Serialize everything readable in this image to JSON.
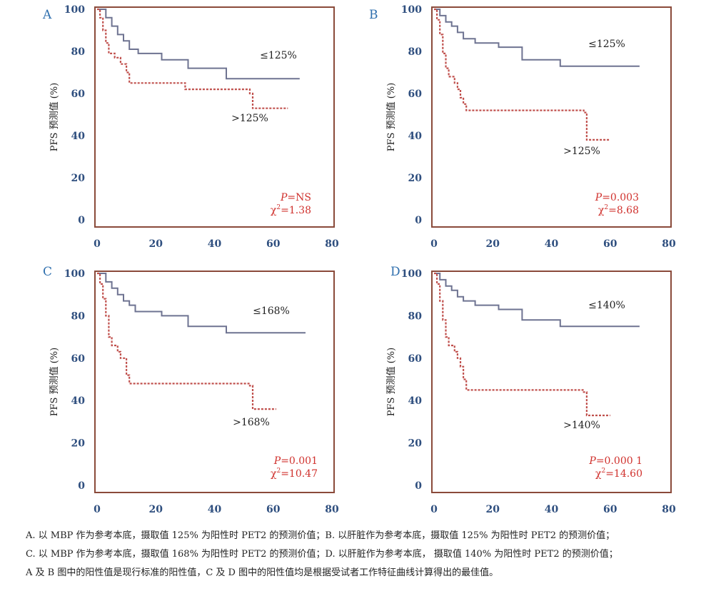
{
  "chart_data": [
    {
      "type": "line",
      "panel_label": "A",
      "ylabel": "PFS 预测值 (%)",
      "xlim": [
        0,
        80
      ],
      "ylim": [
        0,
        100
      ],
      "x_ticks": [
        "0",
        "20",
        "40",
        "60",
        "80"
      ],
      "y_ticks": [
        "0",
        "20",
        "40",
        "60",
        "80",
        "100"
      ],
      "grid": false,
      "series": [
        {
          "name": "≤125%",
          "color": "#6e7391",
          "dash": false,
          "x": [
            0,
            3,
            5,
            7,
            9,
            11,
            14,
            22,
            31,
            44,
            69
          ],
          "y": [
            100,
            96,
            92,
            88,
            85,
            81,
            79,
            76,
            72,
            67,
            67
          ]
        },
        {
          "name": ">125%",
          "color": "#c0504d",
          "dash": true,
          "x": [
            0,
            1,
            2,
            3,
            4,
            6,
            8,
            10,
            11,
            30,
            52,
            53,
            65
          ],
          "y": [
            100,
            96,
            90,
            84,
            79,
            77,
            74,
            70,
            65,
            62,
            60,
            53,
            53
          ]
        }
      ],
      "stat_p_label": "P",
      "stat_p_value": "=NS",
      "stat_chi_label": "χ",
      "stat_chi_exp": "2",
      "stat_chi_value": "=1.38"
    },
    {
      "type": "line",
      "panel_label": "B",
      "ylabel": "PFS 预测值 (%)",
      "xlim": [
        0,
        80
      ],
      "ylim": [
        0,
        100
      ],
      "x_ticks": [
        "0",
        "20",
        "40",
        "60",
        "80"
      ],
      "y_ticks": [
        "0",
        "20",
        "40",
        "60",
        "80",
        "100"
      ],
      "grid": false,
      "series": [
        {
          "name": "≤125%",
          "color": "#6e7391",
          "dash": false,
          "x": [
            0,
            2,
            4,
            6,
            8,
            10,
            14,
            22,
            30,
            43,
            70
          ],
          "y": [
            100,
            97,
            94,
            92,
            89,
            86,
            84,
            82,
            76,
            73,
            73
          ]
        },
        {
          "name": ">125%",
          "color": "#c0504d",
          "dash": true,
          "x": [
            0,
            1,
            2,
            3,
            4,
            5,
            7,
            8,
            9,
            10,
            11,
            51,
            52,
            60
          ],
          "y": [
            100,
            95,
            88,
            79,
            72,
            68,
            65,
            62,
            58,
            55,
            52,
            51,
            38,
            38
          ]
        }
      ],
      "stat_p_label": "P",
      "stat_p_value": "=0.003",
      "stat_chi_label": "χ",
      "stat_chi_exp": "2",
      "stat_chi_value": "=8.68"
    },
    {
      "type": "line",
      "panel_label": "C",
      "ylabel": "PFS 预测值 (%)",
      "xlim": [
        0,
        80
      ],
      "ylim": [
        0,
        100
      ],
      "x_ticks": [
        "0",
        "20",
        "40",
        "60",
        "80"
      ],
      "y_ticks": [
        "0",
        "20",
        "40",
        "60",
        "80",
        "100"
      ],
      "grid": false,
      "series": [
        {
          "name": "≤168%",
          "color": "#6e7391",
          "dash": false,
          "x": [
            0,
            3,
            5,
            7,
            9,
            11,
            13,
            22,
            31,
            44,
            71
          ],
          "y": [
            100,
            96,
            93,
            90,
            87,
            85,
            82,
            80,
            75,
            72,
            72
          ]
        },
        {
          "name": ">168%",
          "color": "#c0504d",
          "dash": true,
          "x": [
            0,
            1,
            2,
            3,
            4,
            5,
            7,
            8,
            10,
            11,
            52,
            53,
            61
          ],
          "y": [
            100,
            95,
            88,
            80,
            70,
            66,
            63,
            60,
            52,
            48,
            47,
            36,
            36
          ]
        }
      ],
      "stat_p_label": "P",
      "stat_p_value": "=0.001",
      "stat_chi_label": "χ",
      "stat_chi_exp": "2",
      "stat_chi_value": "=10.47"
    },
    {
      "type": "line",
      "panel_label": "D",
      "ylabel": "PFS 预测值 (%)",
      "xlim": [
        0,
        80
      ],
      "ylim": [
        0,
        100
      ],
      "x_ticks": [
        "0",
        "20",
        "40",
        "60",
        "80"
      ],
      "y_ticks": [
        "0",
        "20",
        "40",
        "60",
        "80",
        "100"
      ],
      "grid": false,
      "series": [
        {
          "name": "≤140%",
          "color": "#6e7391",
          "dash": false,
          "x": [
            0,
            2,
            4,
            6,
            8,
            10,
            14,
            22,
            30,
            43,
            70
          ],
          "y": [
            100,
            97,
            94,
            92,
            89,
            87,
            85,
            83,
            78,
            75,
            75
          ]
        },
        {
          "name": ">140%",
          "color": "#c0504d",
          "dash": true,
          "x": [
            0,
            1,
            2,
            3,
            4,
            5,
            7,
            8,
            9,
            10,
            11,
            51,
            52,
            60
          ],
          "y": [
            100,
            95,
            87,
            78,
            70,
            66,
            63,
            60,
            56,
            50,
            45,
            44,
            33,
            33
          ]
        }
      ],
      "stat_p_label": "P",
      "stat_p_value": "=0.000 1",
      "stat_chi_label": "χ",
      "stat_chi_exp": "2",
      "stat_chi_value": "=14.60"
    }
  ],
  "caption": {
    "line1": "A. 以 MBP 作为参考本底，摄取值 125% 为阳性时 PET2 的预测价值；B. 以肝脏作为参考本底，摄取值 125% 为阳性时 PET2 的预测价值；",
    "line2": "C. 以 MBP 作为参考本底，摄取值 168% 为阳性时 PET2 的预测价值；D. 以肝脏作为参考本底， 摄取值 140% 为阳性时 PET2 的预测价值；",
    "line3": "A 及 B 图中的阳性值是现行标准的阳性值，C 及 D 图中的阳性值均是根据受试者工作特征曲线计算得出的最佳值。"
  }
}
